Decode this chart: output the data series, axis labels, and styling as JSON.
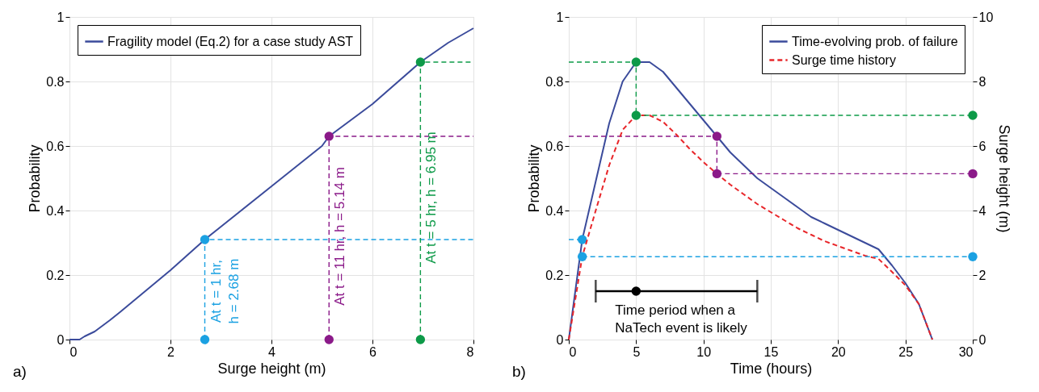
{
  "chart_data": [
    {
      "type": "line",
      "xlabel": "Surge height (m)",
      "ylabel": "Probability",
      "xlim": [
        0,
        8
      ],
      "ylim": [
        0,
        1
      ],
      "xticks": [
        0,
        2,
        4,
        6,
        8
      ],
      "yticks": [
        0,
        0.2,
        0.4,
        0.6,
        0.8,
        1
      ],
      "grid": true,
      "legend": "top left",
      "series": [
        {
          "name": "Fragility model (Eq.2) for a case study AST",
          "line_style": "solid",
          "color": "#3b4b9b",
          "x": [
            0,
            0.2,
            0.3,
            0.5,
            0.8,
            1,
            1.5,
            2,
            2.68,
            3,
            4,
            5,
            5.14,
            6,
            6.95,
            7.5,
            8
          ],
          "values": [
            0,
            0,
            0.01,
            0.025,
            0.06,
            0.085,
            0.15,
            0.215,
            0.31,
            0.35,
            0.475,
            0.6,
            0.63,
            0.73,
            0.86,
            0.92,
            0.965
          ]
        },
        {
          "line_style": "dashed",
          "color": "#1ba1e2",
          "x": [
            2.68,
            2.68,
            8
          ],
          "values": [
            0,
            0.31,
            0.31
          ]
        },
        {
          "line_style": "dashed",
          "color": "#8b1a89",
          "x": [
            5.14,
            5.14,
            8
          ],
          "values": [
            0,
            0.63,
            0.63
          ]
        },
        {
          "line_style": "dashed",
          "color": "#0d9a48",
          "x": [
            6.95,
            6.95,
            8
          ],
          "values": [
            0,
            0.86,
            0.86
          ]
        },
        {
          "type": "scatter",
          "color": "#1ba1e2",
          "x": [
            2.68,
            2.68
          ],
          "values": [
            0.31,
            0
          ]
        },
        {
          "type": "scatter",
          "color": "#8b1a89",
          "x": [
            5.14,
            5.14
          ],
          "values": [
            0.63,
            0
          ]
        },
        {
          "type": "scatter",
          "color": "#0d9a48",
          "x": [
            6.95,
            6.95
          ],
          "values": [
            0.86,
            0
          ]
        }
      ],
      "annotations": [
        {
          "text": "At t = 1 hr,\nh = 2.68 m",
          "x": 2.68,
          "y": 0.15
        },
        {
          "text": "At t = 11 hr, h = 5.14 m",
          "x": 5.14,
          "y": 0.32
        },
        {
          "text": "At t = 5 hr, h = 6.95 m",
          "x": 6.95,
          "y": 0.44
        },
        "a)"
      ]
    },
    {
      "type": "line",
      "xlabel": "Time (hours)",
      "ylabel": "Probability",
      "y2label": "Surge height (m)",
      "xlim": [
        0,
        30
      ],
      "ylim": [
        0,
        1
      ],
      "y2lim": [
        0,
        10
      ],
      "xticks": [
        0,
        5,
        10,
        15,
        20,
        25,
        30
      ],
      "yticks": [
        0,
        0.2,
        0.4,
        0.6,
        0.8,
        1
      ],
      "y2ticks": [
        0,
        2,
        4,
        6,
        8,
        10
      ],
      "grid": true,
      "legend": "top right",
      "series": [
        {
          "name": "Time-evolving prob. of failure",
          "line_style": "solid",
          "color": "#3b4b9b",
          "x": [
            0,
            1,
            2,
            3,
            4,
            5,
            6,
            7,
            8,
            9,
            10,
            11,
            12,
            13,
            14,
            15,
            16,
            17,
            18,
            19,
            20,
            21,
            22,
            23,
            24,
            25,
            26,
            27
          ],
          "values": [
            0,
            0.31,
            0.49,
            0.67,
            0.8,
            0.86,
            0.86,
            0.83,
            0.78,
            0.73,
            0.68,
            0.63,
            0.58,
            0.54,
            0.5,
            0.47,
            0.44,
            0.41,
            0.38,
            0.36,
            0.34,
            0.32,
            0.3,
            0.28,
            0.23,
            0.175,
            0.11,
            0
          ]
        },
        {
          "name": "Surge time history",
          "axis": "y2",
          "line_style": "dashed",
          "color": "#e8262a",
          "x": [
            0,
            1,
            2,
            3,
            4,
            5,
            6,
            7,
            8,
            9,
            10,
            11,
            12,
            13,
            14,
            15,
            16,
            17,
            18,
            19,
            20,
            21,
            22,
            23,
            24,
            25,
            26,
            27
          ],
          "values": [
            0,
            2.57,
            4.0,
            5.4,
            6.5,
            6.95,
            6.95,
            6.75,
            6.35,
            5.9,
            5.5,
            5.14,
            4.8,
            4.5,
            4.2,
            3.95,
            3.7,
            3.45,
            3.25,
            3.05,
            2.9,
            2.75,
            2.6,
            2.5,
            2.1,
            1.68,
            1.1,
            0
          ]
        },
        {
          "line_style": "dashed",
          "color": "#1ba1e2",
          "x": [
            0,
            1
          ],
          "values": [
            0.31,
            0.31
          ]
        },
        {
          "line_style": "dashed",
          "axis": "y2",
          "color": "#1ba1e2",
          "x": [
            1,
            30
          ],
          "values": [
            2.57,
            2.57
          ]
        },
        {
          "line_style": "dashed",
          "color": "#0d9a48",
          "x": [
            0,
            5,
            5
          ],
          "values": [
            0.86,
            0.86,
            0.695
          ]
        },
        {
          "line_style": "dashed",
          "axis": "y2",
          "color": "#0d9a48",
          "x": [
            5,
            30
          ],
          "values": [
            6.95,
            6.95
          ]
        },
        {
          "line_style": "dashed",
          "color": "#8b1a89",
          "x": [
            0,
            11,
            11
          ],
          "values": [
            0.63,
            0.63,
            0.514
          ]
        },
        {
          "line_style": "dashed",
          "axis": "y2",
          "color": "#8b1a89",
          "x": [
            11,
            30
          ],
          "values": [
            5.14,
            5.14
          ]
        },
        {
          "type": "scatter",
          "color": "#1ba1e2",
          "x": [
            1
          ],
          "values": [
            0.31
          ]
        },
        {
          "type": "scatter",
          "axis": "y2",
          "color": "#1ba1e2",
          "x": [
            1,
            30
          ],
          "values": [
            2.57,
            2.57
          ]
        },
        {
          "type": "scatter",
          "color": "#0d9a48",
          "x": [
            5
          ],
          "values": [
            0.86
          ]
        },
        {
          "type": "scatter",
          "axis": "y2",
          "color": "#0d9a48",
          "x": [
            5,
            30
          ],
          "values": [
            6.95,
            6.95
          ]
        },
        {
          "type": "scatter",
          "color": "#8b1a89",
          "x": [
            11
          ],
          "values": [
            0.63
          ]
        },
        {
          "type": "scatter",
          "axis": "y2",
          "color": "#8b1a89",
          "x": [
            11,
            30
          ],
          "values": [
            5.14,
            5.14
          ]
        },
        {
          "type": "scatter",
          "color": "#000000",
          "x": [
            5
          ],
          "values": [
            0.15
          ],
          "xerrors": [
            [
              2,
              14
            ]
          ]
        }
      ],
      "annotations": [
        "Time period when a\nNaTech event is likely",
        "b)"
      ]
    }
  ]
}
